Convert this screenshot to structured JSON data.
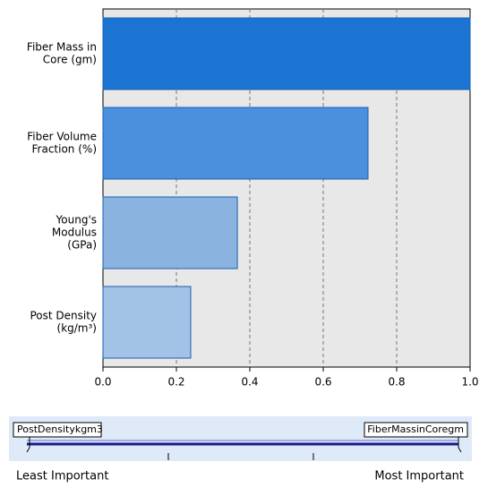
{
  "chart_data": {
    "type": "bar",
    "orientation": "horizontal",
    "categories": [
      [
        "Fiber Mass in",
        "Core (gm)"
      ],
      [
        "Fiber Volume",
        "Fraction  (%)"
      ],
      [
        "Young's",
        "Modulus",
        "(GPa)"
      ],
      [
        "Post Density",
        "(kg/m³)"
      ]
    ],
    "values": [
      1.0,
      0.722,
      0.366,
      0.239
    ],
    "colors": [
      "#1c74d2",
      "#4a90dc",
      "#8ab3e0",
      "#a2c2e6"
    ],
    "xlim": [
      0,
      1
    ],
    "xticks": [
      {
        "value": 0,
        "label": "0.0"
      },
      0.2,
      0.4,
      0.6,
      0.8,
      {
        "value": 1,
        "label": "1.0"
      }
    ],
    "grid": true
  },
  "slider": {
    "left_name": "PostDensitykgm3",
    "right_name": "FiberMassinCoregm",
    "left_caption": "Least Important",
    "right_caption": "Most Important"
  }
}
